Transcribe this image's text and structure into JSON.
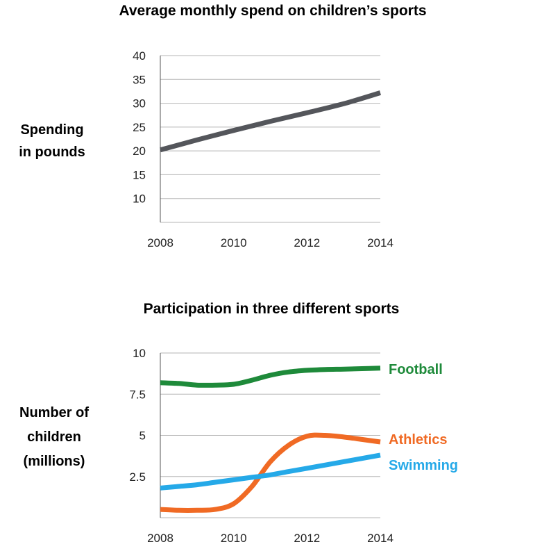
{
  "chart_data": [
    {
      "type": "line",
      "title": "Average monthly spend on children’s sports",
      "xlabel": "",
      "ylabel": [
        "Spending",
        "in pounds"
      ],
      "x": [
        2008,
        2009,
        2010,
        2011,
        2012,
        2013,
        2014
      ],
      "x_ticks": [
        "2008",
        "2010",
        "2012",
        "2014"
      ],
      "y_ticks": [
        "10",
        "15",
        "20",
        "25",
        "30",
        "35",
        "40"
      ],
      "ylim": [
        5,
        40
      ],
      "grid": true,
      "series": [
        {
          "name": "Average monthly spend",
          "color": "#54565b",
          "values": [
            20.2,
            22.3,
            24.3,
            26.2,
            28.0,
            29.9,
            32.2
          ]
        }
      ]
    },
    {
      "type": "line",
      "title": "Participation in three different sports",
      "xlabel": "",
      "ylabel": [
        "Number of",
        "children",
        "(millions)"
      ],
      "x": [
        2008,
        2008.5,
        2009,
        2009.5,
        2010,
        2010.5,
        2011,
        2011.5,
        2012,
        2012.5,
        2013,
        2013.5,
        2014
      ],
      "x_ticks": [
        "2008",
        "2010",
        "2012",
        "2014"
      ],
      "y_ticks": [
        "2.5",
        "5",
        "7.5",
        "10"
      ],
      "ylim": [
        0,
        10
      ],
      "grid": true,
      "legend": "inline-right",
      "series": [
        {
          "name": "Football",
          "color": "#1e8a3a",
          "values": [
            8.2,
            8.15,
            8.05,
            8.05,
            8.1,
            8.35,
            8.65,
            8.85,
            8.95,
            9.0,
            9.02,
            9.05,
            9.08
          ]
        },
        {
          "name": "Athletics",
          "color": "#f06a24",
          "values": [
            0.5,
            0.45,
            0.45,
            0.5,
            0.85,
            1.9,
            3.4,
            4.4,
            4.95,
            5.0,
            4.9,
            4.75,
            4.6
          ]
        },
        {
          "name": "Swimming",
          "color": "#25a9e8",
          "values": [
            1.8,
            1.9,
            2.0,
            2.15,
            2.3,
            2.45,
            2.6,
            2.8,
            3.0,
            3.2,
            3.4,
            3.6,
            3.8
          ]
        }
      ]
    }
  ]
}
